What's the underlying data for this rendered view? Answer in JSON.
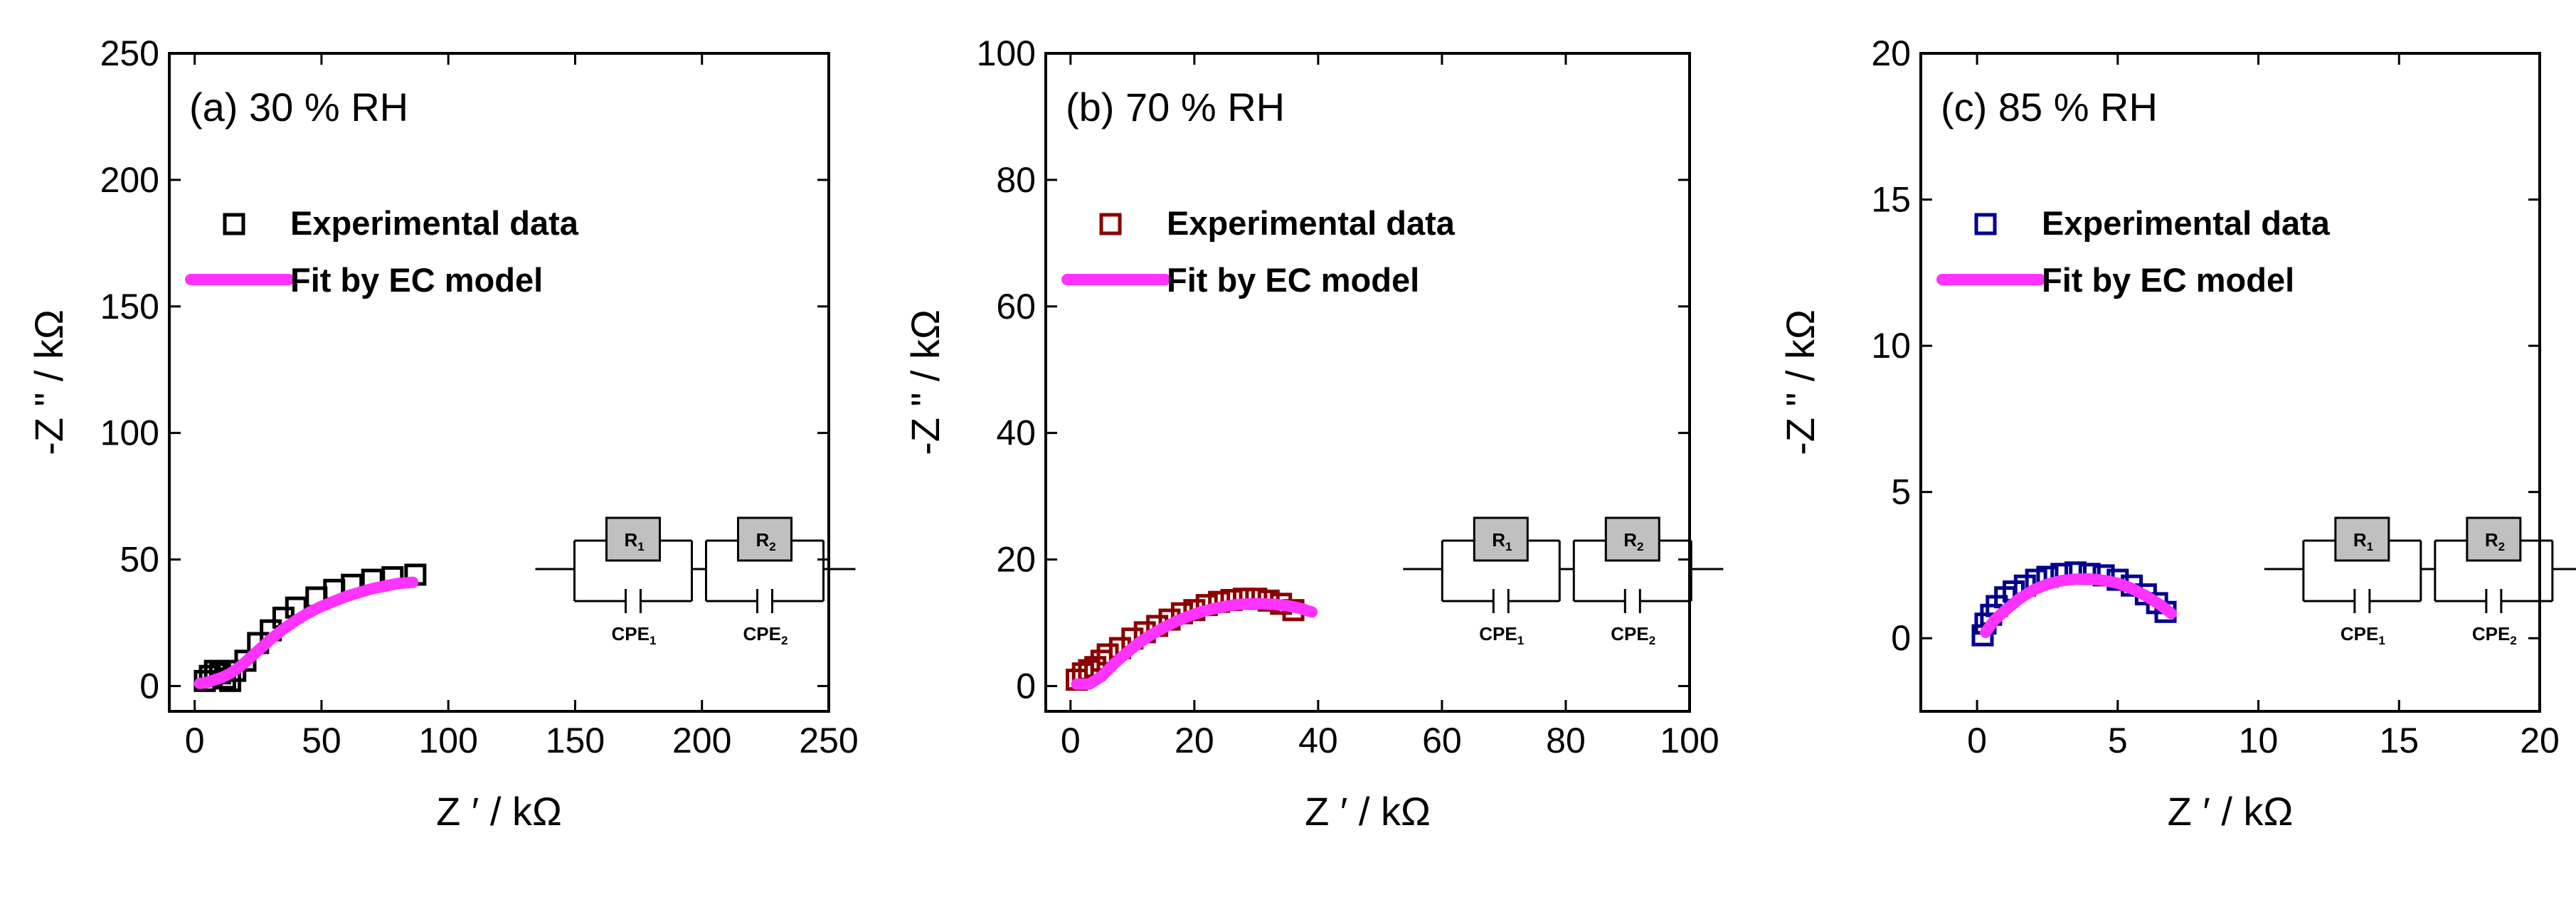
{
  "chart_data": [
    {
      "type": "scatter",
      "panel_label": "(a) 30 % RH",
      "xlabel": "Z ′ / kΩ",
      "ylabel": "-Z \" / kΩ",
      "xlim": [
        -10,
        250
      ],
      "ylim": [
        -10,
        250
      ],
      "xticks": [
        0,
        50,
        100,
        150,
        200,
        250
      ],
      "yticks": [
        0,
        50,
        100,
        150,
        200,
        250
      ],
      "legend": {
        "position": "upper-left",
        "entries": [
          "Experimental data",
          "Fit by EC model"
        ]
      },
      "series": [
        {
          "name": "Experimental data",
          "marker": "open-square",
          "color": "#000000",
          "x": [
            4,
            6,
            8,
            10,
            12,
            14,
            16,
            20,
            25,
            30,
            35,
            40,
            48,
            55,
            62,
            70,
            78,
            87
          ],
          "y": [
            2,
            4,
            6,
            5,
            3,
            2,
            6,
            10,
            17,
            22,
            27,
            31,
            35,
            38,
            40,
            42,
            43,
            44
          ]
        },
        {
          "name": "Fit by EC model",
          "marker": "line",
          "color": "#ff33ff",
          "x": [
            2,
            5,
            8,
            11,
            14,
            17,
            20,
            25,
            30,
            35,
            40,
            45,
            50,
            55,
            60,
            65,
            70,
            75,
            80,
            86
          ],
          "y": [
            1,
            1.5,
            2.5,
            3.5,
            5,
            7,
            9.5,
            14,
            18.5,
            22.5,
            26,
            29,
            31.5,
            33.5,
            35.5,
            37,
            38.5,
            39.5,
            40.5,
            41
          ]
        }
      ],
      "inset": {
        "resistors": [
          "R",
          "R"
        ],
        "subscripts": [
          "1",
          "2"
        ],
        "elements": [
          "CPE",
          "CPE"
        ]
      }
    },
    {
      "type": "scatter",
      "panel_label": "(b) 70 % RH",
      "xlabel": "Z ′ / kΩ",
      "ylabel": "-Z \" / kΩ",
      "xlim": [
        -4,
        100
      ],
      "ylim": [
        -4,
        100
      ],
      "xticks": [
        0,
        20,
        40,
        60,
        80,
        100
      ],
      "yticks": [
        0,
        20,
        40,
        60,
        80,
        100
      ],
      "legend": {
        "position": "upper-left",
        "entries": [
          "Experimental data",
          "Fit by EC model"
        ]
      },
      "series": [
        {
          "name": "Experimental data",
          "marker": "open-square",
          "color": "#8b0000",
          "x": [
            1,
            2,
            3,
            4,
            5,
            6,
            8,
            10,
            12,
            14,
            16,
            18,
            20,
            22,
            24,
            26,
            28,
            30,
            32,
            34,
            36
          ],
          "y": [
            1,
            2,
            2.5,
            3,
            4,
            5,
            6,
            7.5,
            8.5,
            9.5,
            10.5,
            11.5,
            12,
            12.8,
            13.3,
            13.6,
            13.8,
            13.8,
            13.5,
            13,
            12
          ]
        },
        {
          "name": "Fit by EC model",
          "marker": "line",
          "color": "#ff33ff",
          "x": [
            1,
            3,
            5,
            7,
            9,
            11,
            13,
            15,
            17,
            19,
            21,
            23,
            25,
            27,
            29,
            31,
            33,
            35,
            37,
            39
          ],
          "y": [
            0.3,
            0.3,
            1.5,
            3.5,
            5.2,
            6.8,
            8.1,
            9.2,
            10.2,
            11,
            11.7,
            12.2,
            12.6,
            12.9,
            13,
            13,
            12.9,
            12.7,
            12.3,
            11.7
          ]
        }
      ],
      "inset": {
        "resistors": [
          "R",
          "R"
        ],
        "subscripts": [
          "1",
          "2"
        ],
        "elements": [
          "CPE",
          "CPE"
        ]
      }
    },
    {
      "type": "scatter",
      "panel_label": "(c) 85 % RH",
      "xlabel": "Z ′ / kΩ",
      "ylabel": "-Z \" / kΩ",
      "xlim": [
        -2,
        20
      ],
      "ylim": [
        -2.5,
        20
      ],
      "xticks": [
        0,
        5,
        10,
        15,
        20
      ],
      "yticks": [
        0,
        5,
        10,
        15,
        20
      ],
      "legend": {
        "position": "upper-left",
        "entries": [
          "Experimental data",
          "Fit by EC model"
        ]
      },
      "series": [
        {
          "name": "Experimental data",
          "marker": "open-square",
          "color": "#00008b",
          "x": [
            0.2,
            0.3,
            0.5,
            0.7,
            1,
            1.3,
            1.7,
            2.1,
            2.5,
            3,
            3.5,
            4,
            4.5,
            5,
            5.5,
            6,
            6.4,
            6.7
          ],
          "y": [
            0.1,
            0.5,
            0.8,
            1.1,
            1.4,
            1.6,
            1.8,
            2,
            2.1,
            2.2,
            2.25,
            2.2,
            2.15,
            2,
            1.8,
            1.5,
            1.2,
            0.9
          ]
        },
        {
          "name": "Fit by EC model",
          "marker": "line",
          "color": "#ff33ff",
          "x": [
            0.3,
            0.6,
            1,
            1.5,
            2,
            2.5,
            3,
            3.5,
            4,
            4.5,
            5,
            5.5,
            6,
            6.5,
            6.9
          ],
          "y": [
            0.2,
            0.6,
            0.95,
            1.35,
            1.65,
            1.85,
            1.97,
            2.02,
            2.03,
            1.98,
            1.88,
            1.7,
            1.45,
            1.15,
            0.85
          ]
        }
      ],
      "inset": {
        "resistors": [
          "R",
          "R"
        ],
        "subscripts": [
          "1",
          "2"
        ],
        "elements": [
          "CPE",
          "CPE"
        ]
      }
    }
  ]
}
